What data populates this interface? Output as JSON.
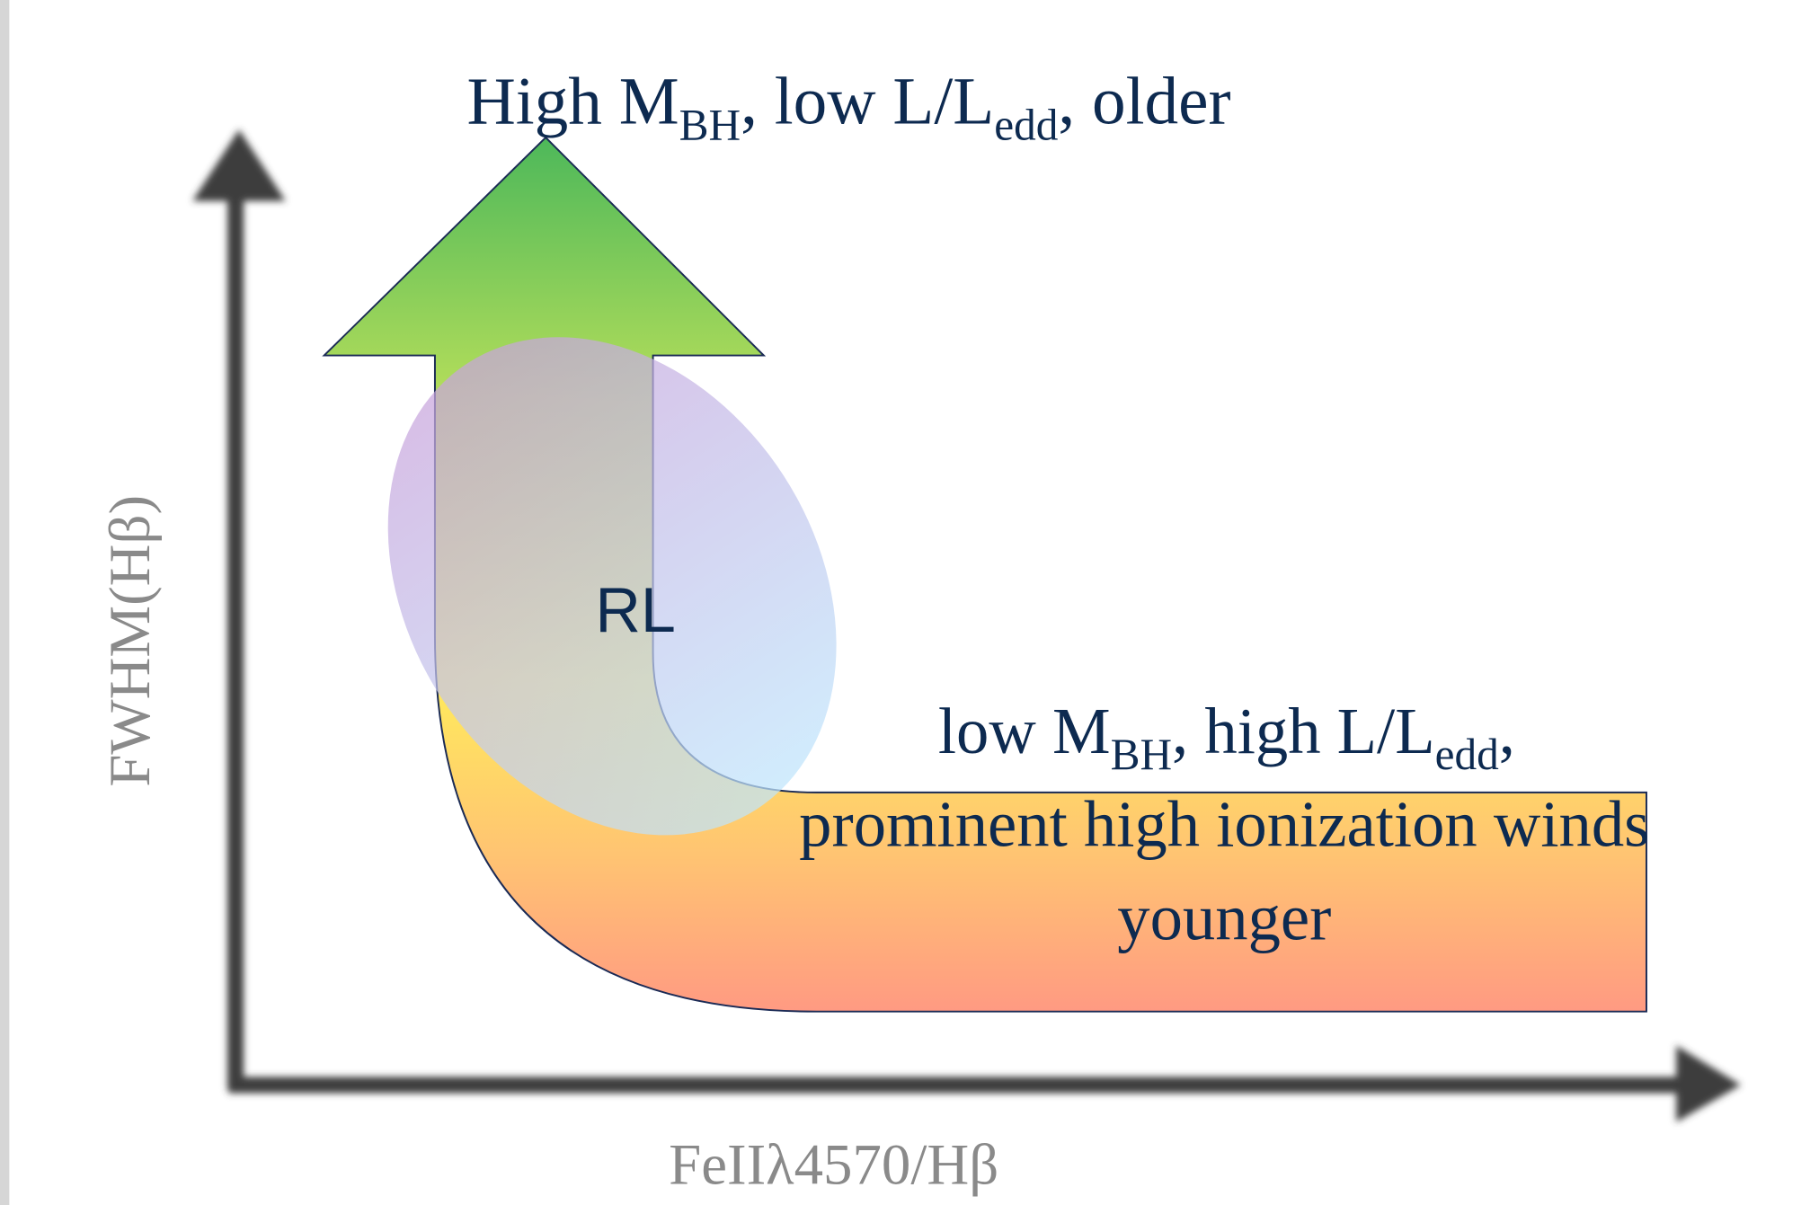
{
  "top_label": [
    "High M",
    "BH",
    ", low L/L",
    "edd",
    ", older"
  ],
  "bottom_label": {
    "line1": [
      "low M",
      "BH",
      ", high L/L",
      "edd",
      ","
    ],
    "line2": "prominent high ionization winds",
    "line3": "younger"
  },
  "center_label": "RL",
  "y_axis_label": "FWHM(Hβ)",
  "x_axis_label": "FeIIλ4570/Hβ"
}
